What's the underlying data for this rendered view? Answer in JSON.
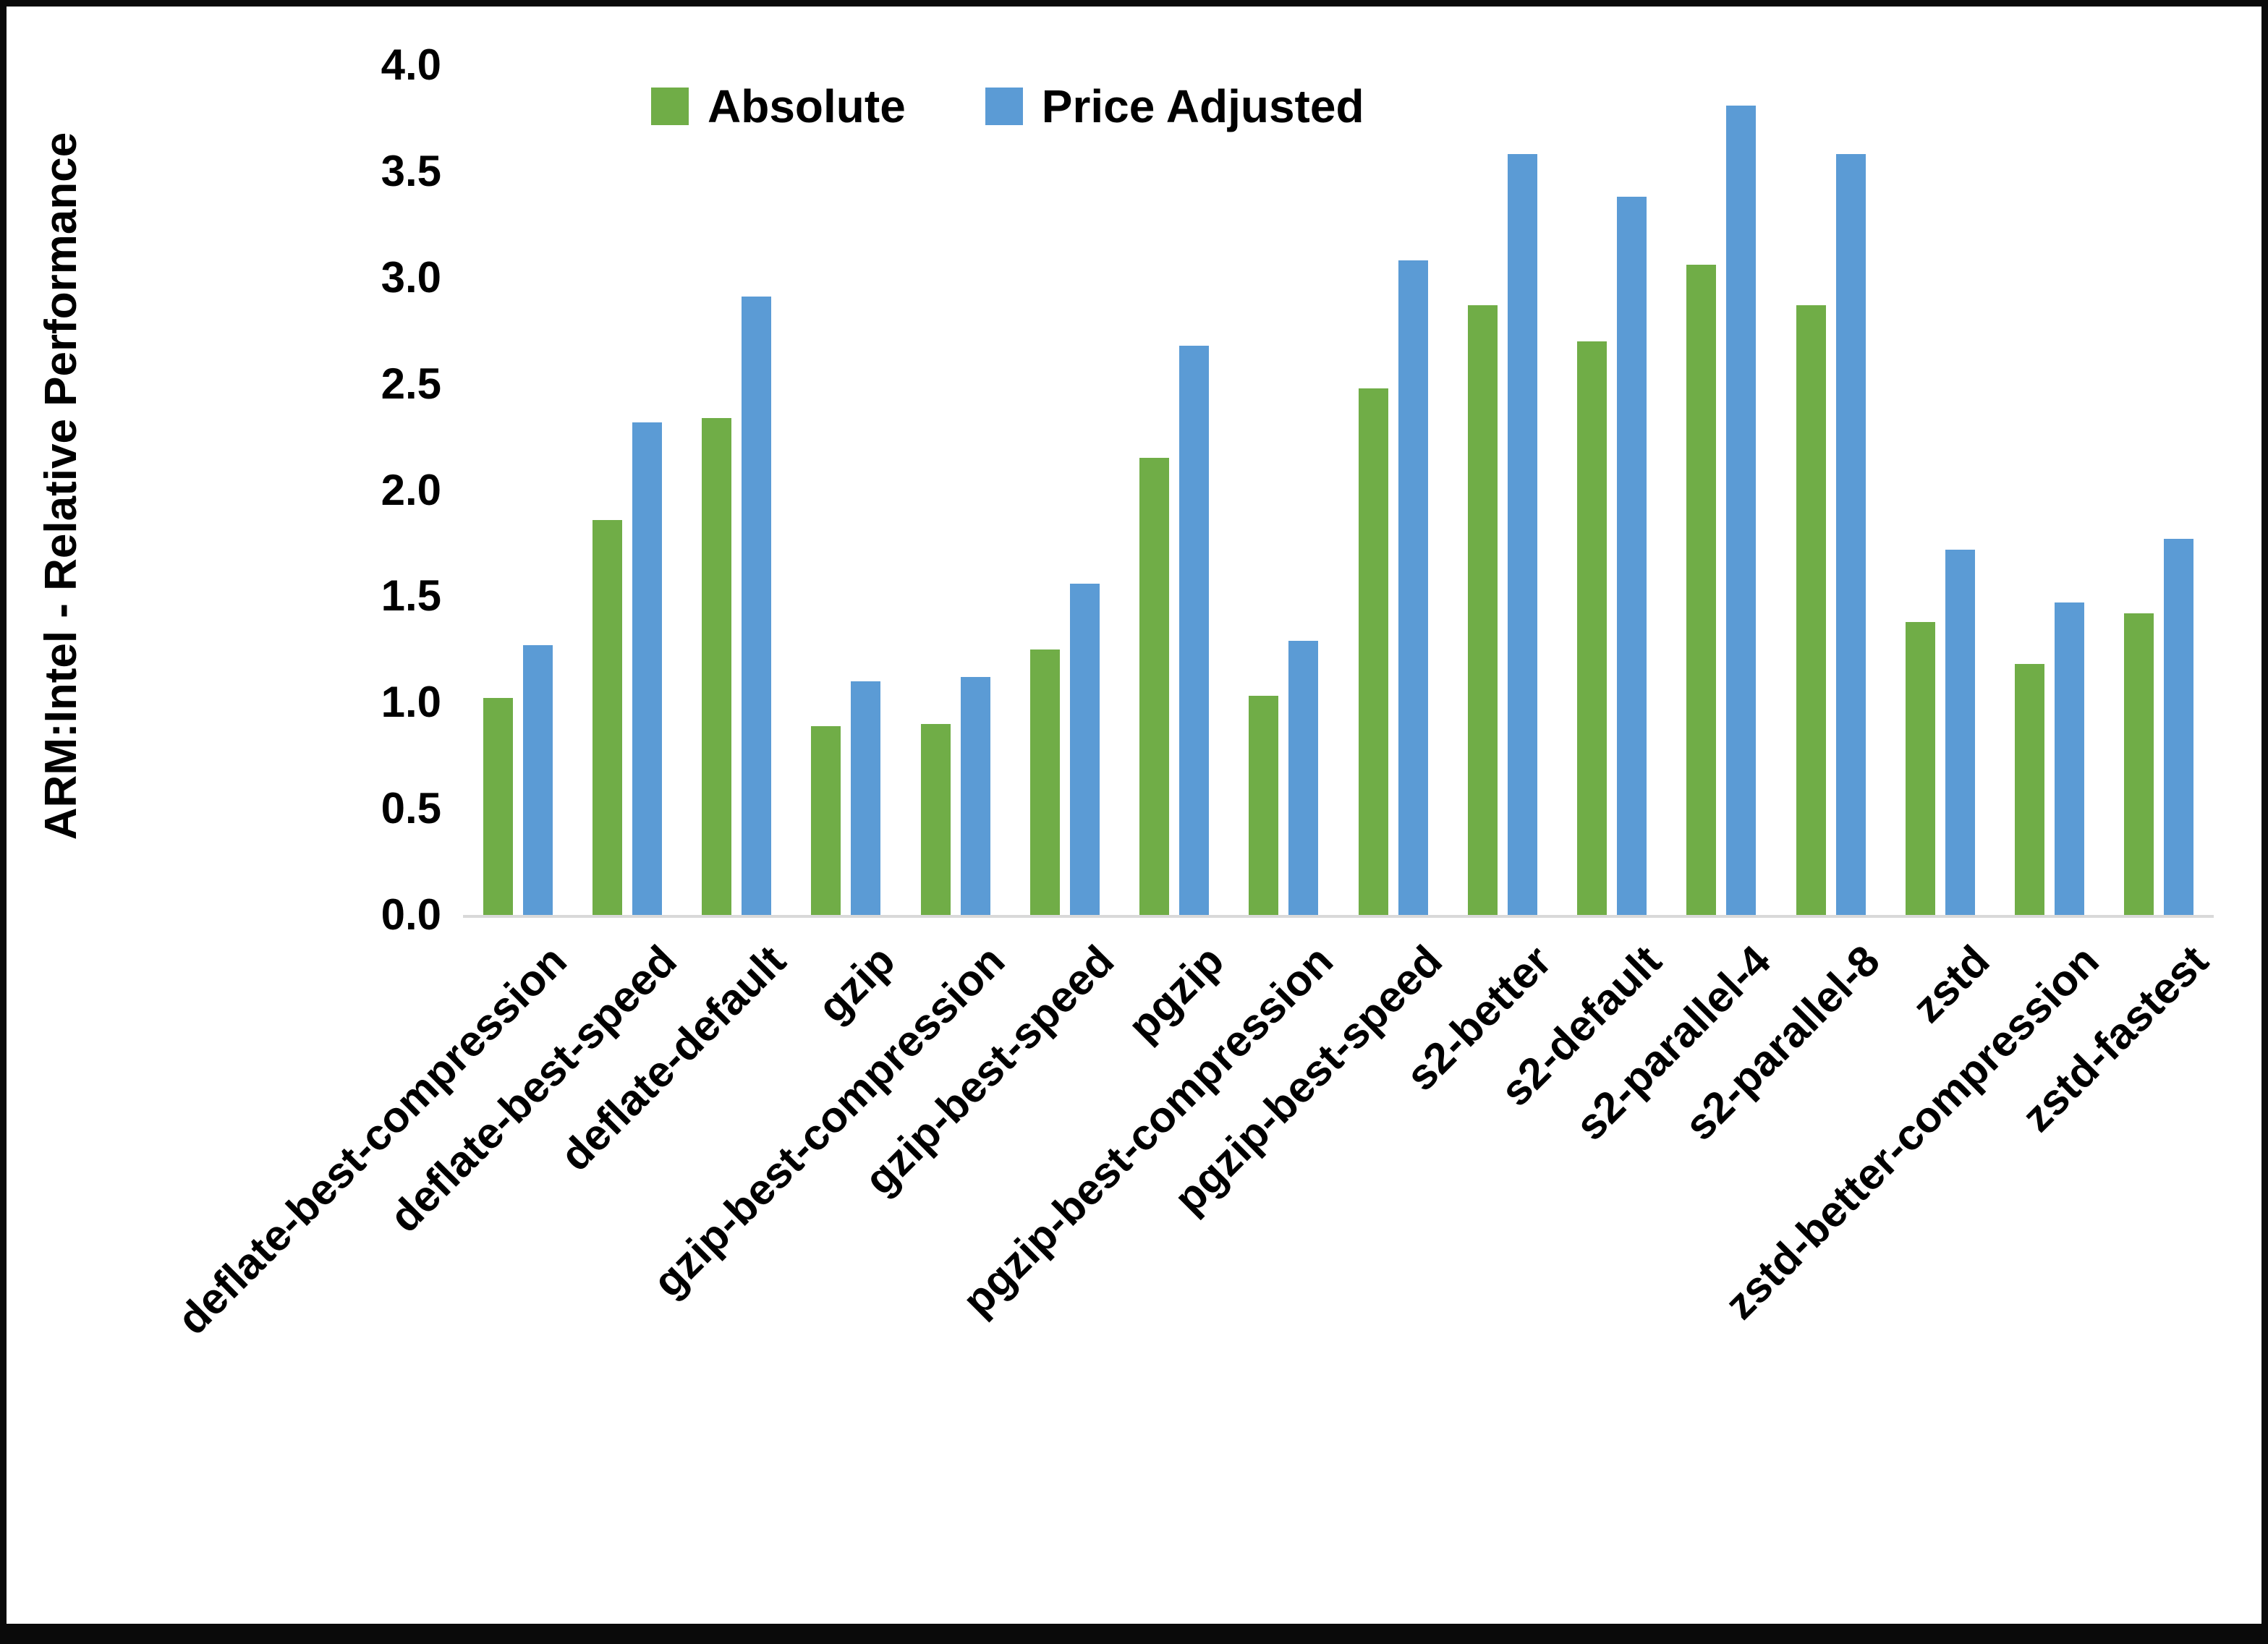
{
  "chart_data": {
    "type": "bar",
    "title": "",
    "xlabel": "",
    "ylabel": "ARM:Intel - Relative Performance",
    "ylim": [
      0,
      4.0
    ],
    "y_ticks": [
      0.0,
      0.5,
      1.0,
      1.5,
      2.0,
      2.5,
      3.0,
      3.5,
      4.0
    ],
    "grid": false,
    "legend_position": "top-center",
    "background_color": "#ffffff",
    "axis_line_color": "#d9d9d9",
    "frame_color": "#0a0a0a",
    "categories": [
      "deflate-best-compression",
      "deflate-best-speed",
      "deflate-default",
      "gzip",
      "gzip-best-compression",
      "gzip-best-speed",
      "pgzip",
      "pgzip-best-compression",
      "pgzip-best-speed",
      "s2-better",
      "s2-default",
      "s2-parallel-4",
      "s2-parallel-8",
      "zstd",
      "zstd-better-compression",
      "zstd-fastest"
    ],
    "series": [
      {
        "name": "Absolute",
        "color": "#70AD47",
        "values": [
          1.02,
          1.86,
          2.34,
          0.89,
          0.9,
          1.25,
          2.15,
          1.03,
          2.48,
          2.87,
          2.7,
          3.06,
          2.87,
          1.38,
          1.18,
          1.42
        ]
      },
      {
        "name": "Price Adjusted",
        "color": "#5B9BD5",
        "values": [
          1.27,
          2.32,
          2.91,
          1.1,
          1.12,
          1.56,
          2.68,
          1.29,
          3.08,
          3.58,
          3.38,
          3.81,
          3.58,
          1.72,
          1.47,
          1.77
        ]
      }
    ]
  }
}
